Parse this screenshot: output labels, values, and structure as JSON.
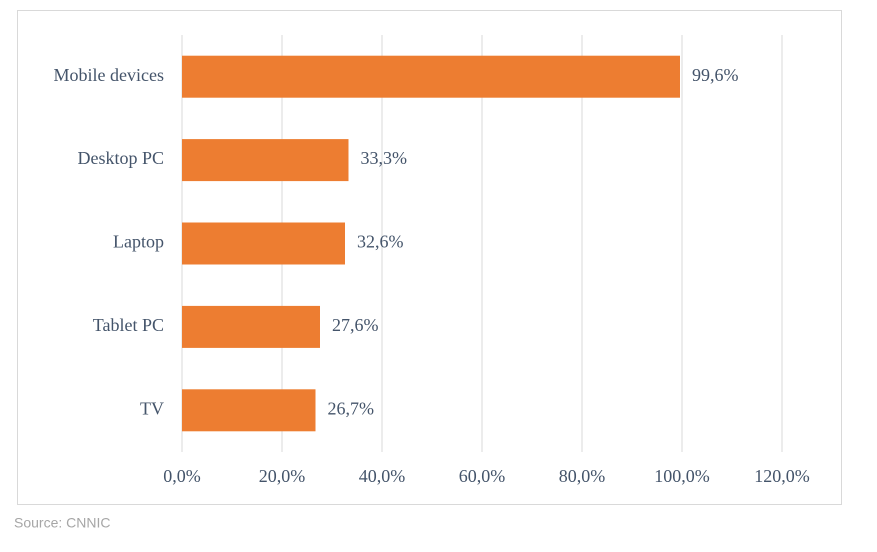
{
  "chart_data": {
    "type": "bar",
    "orientation": "horizontal",
    "categories": [
      "Mobile devices",
      "Desktop PC",
      "Laptop",
      "Tablet PC",
      "TV"
    ],
    "values": [
      99.6,
      33.3,
      32.6,
      27.6,
      26.7
    ],
    "value_labels": [
      "99,6%",
      "33,3%",
      "32,6%",
      "27,6%",
      "26,7%"
    ],
    "color": "#ed7d31",
    "xlim": [
      0,
      120
    ],
    "xticks": [
      {
        "value": 0,
        "label": "0,0%"
      },
      {
        "value": 20,
        "label": "20,0%"
      },
      {
        "value": 40,
        "label": "40,0%"
      },
      {
        "value": 60,
        "label": "60,0%"
      },
      {
        "value": 80,
        "label": "80,0%"
      },
      {
        "value": 100,
        "label": "100,0%"
      },
      {
        "value": 120,
        "label": "120,0%"
      }
    ],
    "grid": true,
    "source": "Source: CNNIC"
  }
}
